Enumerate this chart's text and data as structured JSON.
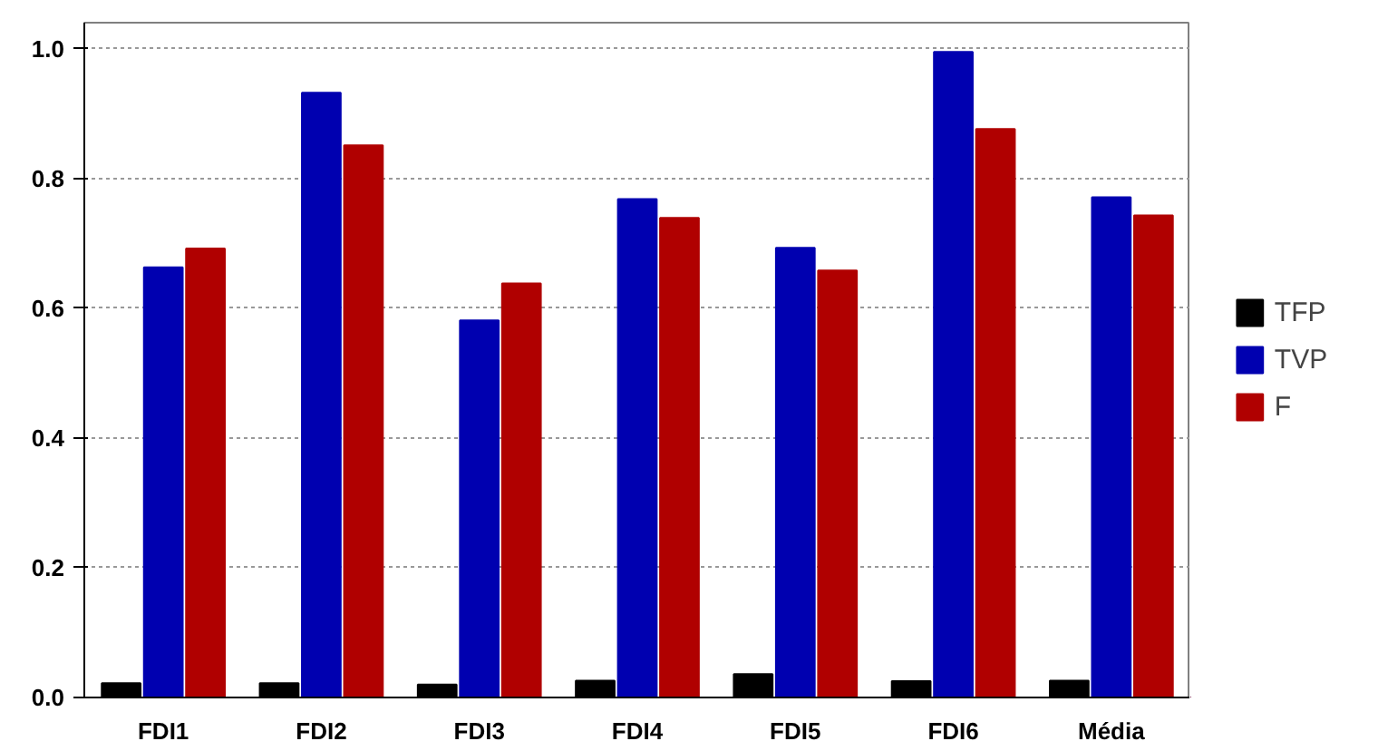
{
  "chart_data": {
    "type": "bar",
    "categories": [
      "FDI1",
      "FDI2",
      "FDI3",
      "FDI4",
      "FDI5",
      "FDI6",
      "Média"
    ],
    "series": [
      {
        "name": "TFP",
        "color": "#000000",
        "values": [
          0.022,
          0.022,
          0.02,
          0.026,
          0.036,
          0.025,
          0.026
        ]
      },
      {
        "name": "TVP",
        "color": "#0000b0",
        "values": [
          0.663,
          0.932,
          0.581,
          0.768,
          0.693,
          0.995,
          0.771
        ]
      },
      {
        "name": "F",
        "color": "#b00000",
        "values": [
          0.692,
          0.851,
          0.638,
          0.739,
          0.658,
          0.876,
          0.743
        ]
      }
    ],
    "ylim": [
      0,
      1.04
    ],
    "yticks": [
      {
        "value": 0,
        "label": "0.0"
      },
      0.2,
      0.4,
      0.6,
      0.8,
      {
        "value": 1,
        "label": "1.0"
      }
    ],
    "grid": "y",
    "legend": "right"
  }
}
